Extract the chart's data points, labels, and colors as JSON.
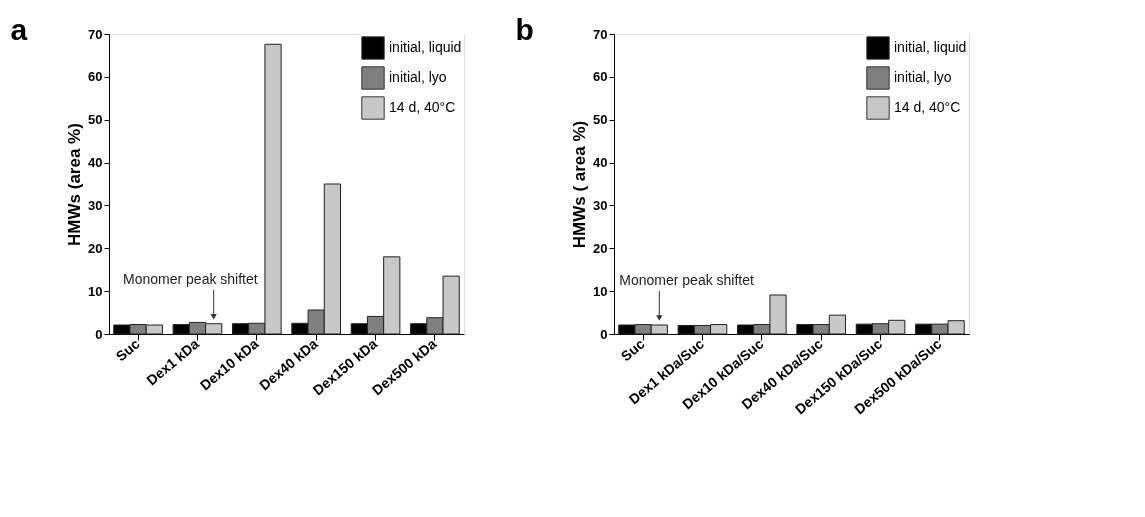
{
  "chart_data": [
    {
      "type": "bar",
      "title": "a",
      "ylabel": "HMWs (area %)",
      "categories": [
        "Suc",
        "Dex1 kDa",
        "Dex10 kDa",
        "Dex40 kDa",
        "Dex150 kDa",
        "Dex500 kDa"
      ],
      "series": [
        {
          "name": "initial, liquid",
          "color": "#000000",
          "values": [
            2.1,
            2.2,
            2.4,
            2.5,
            2.4,
            2.4
          ]
        },
        {
          "name": "initial, lyo",
          "color": "#808080",
          "values": [
            2.2,
            2.7,
            2.5,
            5.6,
            4.1,
            3.8
          ]
        },
        {
          "name": "14 d, 40°C",
          "color": "#c8c8c8",
          "values": [
            2.1,
            2.4,
            67.6,
            35.0,
            18.0,
            13.5
          ]
        }
      ],
      "ylim": [
        0,
        70
      ],
      "yticks": [
        0,
        10,
        20,
        30,
        40,
        50,
        60,
        70
      ],
      "grid": false,
      "legend": "top right",
      "annotations": [
        {
          "text": "Monomer peak shiftet",
          "x": "Dex1 kDa",
          "y": 2.4
        }
      ]
    },
    {
      "type": "bar",
      "title": "b",
      "ylabel": "HMWs ( area %)",
      "categories": [
        "Suc",
        "Dex1 kDa/Suc",
        "Dex10 kDa/Suc",
        "Dex40 kDa/Suc",
        "Dex150 kDa/Suc",
        "Dex500 kDa/Suc"
      ],
      "series": [
        {
          "name": "initial, liquid",
          "color": "#000000",
          "values": [
            2.1,
            2.0,
            2.1,
            2.2,
            2.3,
            2.3
          ]
        },
        {
          "name": "initial, lyo",
          "color": "#808080",
          "values": [
            2.2,
            2.0,
            2.2,
            2.2,
            2.4,
            2.3
          ]
        },
        {
          "name": "14 d, 40°C",
          "color": "#c8c8c8",
          "values": [
            2.1,
            2.2,
            9.1,
            4.4,
            3.2,
            3.1
          ]
        }
      ],
      "ylim": [
        0,
        70
      ],
      "yticks": [
        0,
        10,
        20,
        30,
        40,
        50,
        60,
        70
      ],
      "grid": false,
      "legend": "top right",
      "annotations": [
        {
          "text": "Monomer peak shiftet",
          "x": "Suc",
          "y": 2.1
        }
      ]
    }
  ]
}
